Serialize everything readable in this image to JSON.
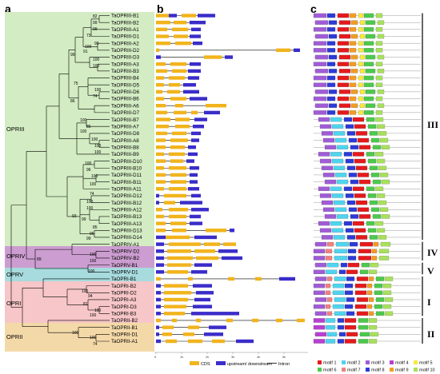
{
  "panels": {
    "a": "a",
    "b": "b",
    "c": "c"
  },
  "subfamilies": [
    {
      "name": "OPRIII",
      "color": "#d3ecc3"
    },
    {
      "name": "OPRIV",
      "color": "#cc9dd0"
    },
    {
      "name": "OPRV",
      "color": "#a7dbde"
    },
    {
      "name": "OPRI",
      "color": "#f7c6c8"
    },
    {
      "name": "OPRII",
      "color": "#f4d9a8"
    }
  ],
  "groups": [
    "III",
    "IV",
    "V",
    "I",
    "II"
  ],
  "genes": [
    "TaOPRIII-B1",
    "TaOPRIII-B2",
    "TaOPRIII-A1",
    "TaOPRIII-D1",
    "TaOPRIII-A2",
    "TaOPRIII-D2",
    "TaOPRIII-D3",
    "TaOPRIII-A3",
    "TaOPRIII-B3",
    "TaOPRIII-B4",
    "TaOPRIII-D5",
    "TaOPRIII-D6",
    "TaOPRIII-B6",
    "TaOPRIII-A6",
    "TaOPRIII-D7",
    "TaOPRIII-B7",
    "TaOPRIII-A7",
    "TaOPRIII-D8",
    "TaOPRIII-A8",
    "TaOPRIII-B8",
    "TaOPRIII-B9",
    "TaOPRIII-D10",
    "TaOPRIII-B10",
    "TaOPRIII-D11",
    "TaOPRIII-B11",
    "TaOPRIII-A11",
    "TaOPRIII-D12",
    "TaOPRIII-B12",
    "TaOPRIII-A12",
    "TaOPRIII-B13",
    "TaOPRIII-A13",
    "TaOPRIII-D13",
    "TaOPRIII-D14",
    "TaOPRIV-A1",
    "TaOPRIV-D2",
    "TaOPRIV-B2",
    "TaOPRV-B1",
    "TaOPRV-D1",
    "TaOPRI-B1",
    "TaOPRI-B2",
    "TaOPRI-D2",
    "TaOPRI-A3",
    "TaOPRI-D3",
    "TaOPRI-B3",
    "TaOPRII-B2",
    "TaOPRII-B1",
    "TaOPRII-D1",
    "TaOPRII-A1"
  ],
  "bootstraps": [
    "82",
    "99",
    "99",
    "73",
    "99",
    "100",
    "91",
    "100",
    "100",
    "99",
    "75",
    "100",
    "74",
    "86",
    "100",
    "85",
    "100",
    "100",
    "100",
    "100",
    "100",
    "96",
    "100",
    "100",
    "74",
    "93",
    "100",
    "100",
    "99",
    "85",
    "96",
    "99",
    "100",
    "100",
    "100",
    "89",
    "100",
    "94",
    "81",
    "100",
    "100",
    "100",
    "100",
    "74"
  ],
  "gene_structure": {
    "legend": [
      "CDS",
      "upstream/ downstream",
      "Intron"
    ],
    "axis_ticks": [
      "0",
      "1k",
      "2k",
      "3k",
      "4k",
      "5k"
    ],
    "colors": {
      "cds": "#f2b41c",
      "utr": "#3a2dc9",
      "intron": "#000000"
    }
  },
  "motif_legend": [
    "motif 1",
    "motif 2",
    "motif 3",
    "motif 4",
    "motif 5",
    "motif 6",
    "motif 7",
    "motif 8",
    "motif 9",
    "motif 10"
  ],
  "motif_colors": [
    "#e41a1c",
    "#4fd4ee",
    "#a05cd6",
    "#b93fd2",
    "#f7e93c",
    "#4cc94c",
    "#f08080",
    "#2c3ad6",
    "#f29c24",
    "#a8e05c"
  ]
}
